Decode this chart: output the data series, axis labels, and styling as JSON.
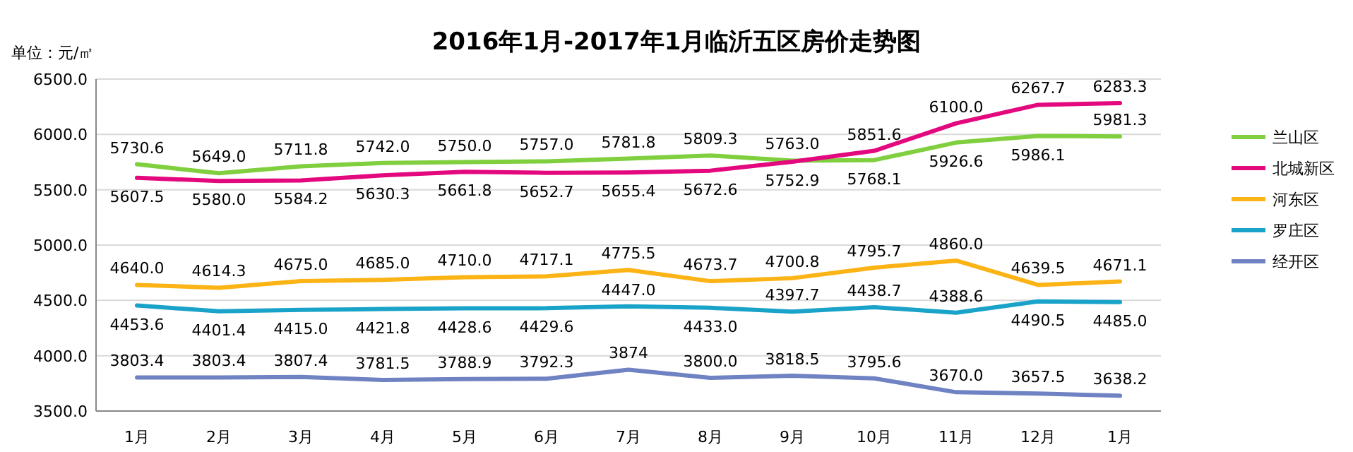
{
  "chart_data": {
    "type": "line",
    "title": "2016年1月-2017年1月临沂五区房价走势图",
    "ylabel": "单位：元/㎡",
    "categories": [
      "1月",
      "2月",
      "3月",
      "4月",
      "5月",
      "6月",
      "7月",
      "8月",
      "9月",
      "10月",
      "11月",
      "12月",
      "1月"
    ],
    "ylim": [
      3500,
      6500
    ],
    "yticks": [
      {
        "value": 3500,
        "label": "3500.0"
      },
      {
        "value": 4000,
        "label": "4000.0"
      },
      {
        "value": 4500,
        "label": "4500.0"
      },
      {
        "value": 5000,
        "label": "5000.0"
      },
      {
        "value": 5500,
        "label": "5500.0"
      },
      {
        "value": 6000,
        "label": "6000.0"
      },
      {
        "value": 6500,
        "label": "6500.0"
      }
    ],
    "grid": "y",
    "legend": "right",
    "marker": "none",
    "series": [
      {
        "name": "兰山区",
        "color": "#7fcf3e",
        "values": [
          5730.6,
          5649.0,
          5711.8,
          5742.0,
          5750.0,
          5757.0,
          5781.8,
          5809.3,
          5763.0,
          5768.1,
          5926.6,
          5986.1,
          5981.3
        ],
        "value_labels": [
          "5730.6",
          "5649.0",
          "5711.8",
          "5742.0",
          "5750.0",
          "5757.0",
          "5781.8",
          "5809.3",
          "5763.0",
          "5768.1",
          "5926.6",
          "5986.1",
          "5981.3"
        ]
      },
      {
        "name": "北城新区",
        "color": "#e4087e",
        "values": [
          5607.5,
          5580.0,
          5584.2,
          5630.3,
          5661.8,
          5652.7,
          5655.4,
          5672.6,
          5752.9,
          5851.6,
          6100.0,
          6267.7,
          6283.3
        ],
        "value_labels": [
          "5607.5",
          "5580.0",
          "5584.2",
          "5630.3",
          "5661.8",
          "5652.7",
          "5655.4",
          "5672.6",
          "5752.9",
          "5851.6",
          "6100.0",
          "6267.7",
          "6283.3"
        ]
      },
      {
        "name": "河东区",
        "color": "#fbb315",
        "values": [
          4640.0,
          4614.3,
          4675.0,
          4685.0,
          4710.0,
          4717.1,
          4775.5,
          4673.7,
          4700.8,
          4795.7,
          4860.0,
          4639.5,
          4671.1
        ],
        "value_labels": [
          "4640.0",
          "4614.3",
          "4675.0",
          "4685.0",
          "4710.0",
          "4717.1",
          "4775.5",
          "4673.7",
          "4700.8",
          "4795.7",
          "4860.0",
          "4639.5",
          "4671.1"
        ]
      },
      {
        "name": "罗庄区",
        "color": "#1aa3c9",
        "values": [
          4453.6,
          4401.4,
          4415.0,
          4421.8,
          4428.6,
          4429.6,
          4447.0,
          4433.0,
          4397.7,
          4438.7,
          4388.6,
          4490.5,
          4485.0
        ],
        "value_labels": [
          "4453.6",
          "4401.4",
          "4415.0",
          "4421.8",
          "4428.6",
          "4429.6",
          "4447.0",
          "4433.0",
          "4397.7",
          "4438.7",
          "4388.6",
          "4490.5",
          "4485.0"
        ]
      },
      {
        "name": "经开区",
        "color": "#6f82c2",
        "values": [
          3803.4,
          3803.4,
          3807.4,
          3781.5,
          3788.9,
          3792.3,
          3874,
          3800.0,
          3818.5,
          3795.6,
          3670.0,
          3657.5,
          3638.2
        ],
        "value_labels": [
          "3803.4",
          "3803.4",
          "3807.4",
          "3781.5",
          "3788.9",
          "3792.3",
          "3874",
          "3800.0",
          "3818.5",
          "3795.6",
          "3670.0",
          "3657.5",
          "3638.2"
        ]
      }
    ]
  }
}
